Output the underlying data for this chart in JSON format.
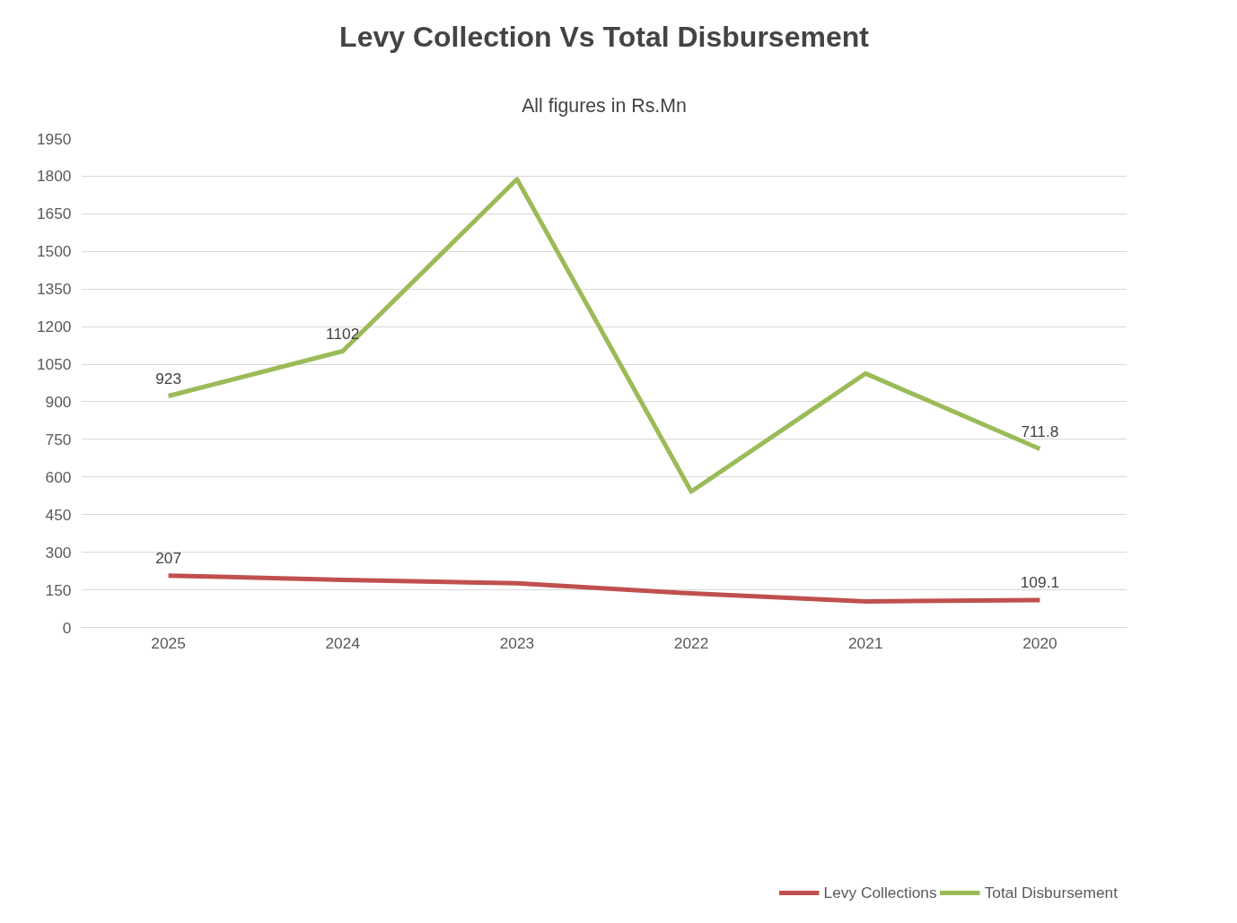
{
  "chart_data": {
    "type": "line",
    "title": "Levy Collection Vs Total Disbursement",
    "subtitle": "All figures in Rs.Mn",
    "categories": [
      "2025",
      "2024",
      "2023",
      "2022",
      "2021",
      "2020"
    ],
    "series": [
      {
        "name": "Levy Collections",
        "color": "#c0504d",
        "values": [
          207,
          190,
          176,
          136,
          104,
          109.1
        ],
        "value_labels": [
          "207",
          null,
          null,
          null,
          null,
          "109.1"
        ]
      },
      {
        "name": "Total Disbursement",
        "color": "#9bbb59",
        "values": [
          923,
          1102,
          1788,
          542,
          1013,
          711.8
        ],
        "value_labels": [
          "923",
          "1102",
          null,
          null,
          null,
          "711.8"
        ]
      }
    ],
    "ylim": [
      0,
      1950
    ],
    "yticks": [
      0,
      150,
      300,
      450,
      600,
      750,
      900,
      1050,
      1200,
      1350,
      1500,
      1650,
      1800,
      1950
    ],
    "grid": "y",
    "legend": "bottom",
    "marker": "none",
    "line_style": "solid"
  }
}
